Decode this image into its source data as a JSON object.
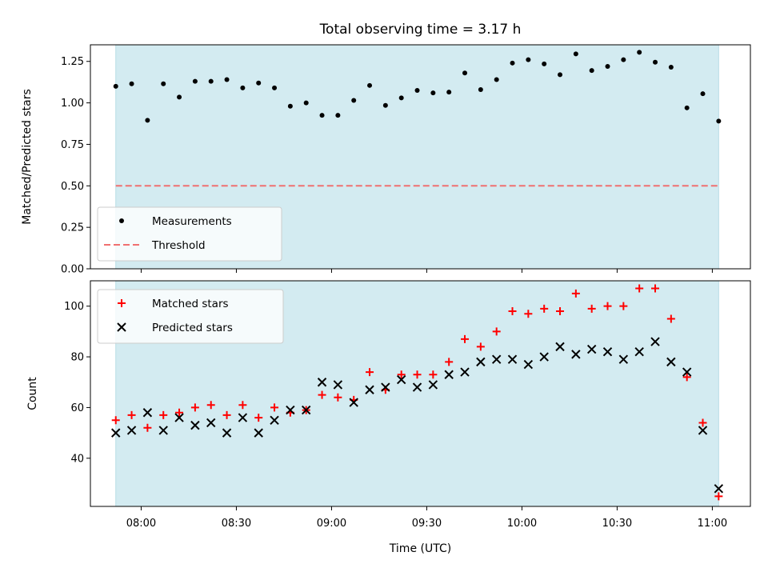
{
  "chart_data": [
    {
      "type": "scatter",
      "title": "Total observing time = 3.17 h",
      "xlabel": "",
      "ylabel": "Matched/Predicted stars",
      "ylim": [
        0,
        1.35
      ],
      "yticks": [
        "0.00",
        "0.25",
        "0.50",
        "0.75",
        "1.00",
        "1.25"
      ],
      "x_tick_labels_visible": false,
      "grid": false,
      "legend": "lower-left",
      "shaded_interval": [
        "07:52",
        "11:02"
      ],
      "shade_color": "#d3ebf1",
      "series": [
        {
          "name": "Measurements",
          "marker": "dot",
          "color": "#000000",
          "x": [
            "07:52",
            "07:57",
            "08:02",
            "08:07",
            "08:12",
            "08:17",
            "08:22",
            "08:27",
            "08:32",
            "08:37",
            "08:42",
            "08:47",
            "08:52",
            "08:57",
            "09:02",
            "09:07",
            "09:12",
            "09:17",
            "09:22",
            "09:27",
            "09:32",
            "09:37",
            "09:42",
            "09:47",
            "09:52",
            "09:57",
            "10:02",
            "10:07",
            "10:12",
            "10:17",
            "10:22",
            "10:27",
            "10:32",
            "10:37",
            "10:42",
            "10:47",
            "10:52",
            "10:57",
            "11:02"
          ],
          "y": [
            1.1,
            1.115,
            0.895,
            1.115,
            1.035,
            1.13,
            1.13,
            1.14,
            1.09,
            1.12,
            1.09,
            0.98,
            1.0,
            0.925,
            0.925,
            1.015,
            1.105,
            0.985,
            1.03,
            1.075,
            1.06,
            1.065,
            1.18,
            1.08,
            1.14,
            1.24,
            1.26,
            1.235,
            1.17,
            1.295,
            1.195,
            1.22,
            1.26,
            1.305,
            1.245,
            1.215,
            0.97,
            1.055,
            0.89
          ]
        },
        {
          "name": "Threshold",
          "marker": "dashed-line",
          "color": "#f07070",
          "y": 0.5
        }
      ]
    },
    {
      "type": "scatter",
      "title": "",
      "xlabel": "Time (UTC)",
      "ylabel": "Count",
      "ylim": [
        21,
        110
      ],
      "yticks": [
        "40",
        "60",
        "80",
        "100"
      ],
      "xlim": [
        "07:44",
        "11:12"
      ],
      "xticks": [
        "08:00",
        "08:30",
        "09:00",
        "09:30",
        "10:00",
        "10:30",
        "11:00"
      ],
      "grid": false,
      "legend": "top-left",
      "shaded_interval": [
        "07:52",
        "11:02"
      ],
      "shade_color": "#d3ebf1",
      "series": [
        {
          "name": "Matched stars",
          "marker": "plus",
          "color": "#ff0000",
          "x": [
            "07:52",
            "07:57",
            "08:02",
            "08:07",
            "08:12",
            "08:17",
            "08:22",
            "08:27",
            "08:32",
            "08:37",
            "08:42",
            "08:47",
            "08:52",
            "08:57",
            "09:02",
            "09:07",
            "09:12",
            "09:17",
            "09:22",
            "09:27",
            "09:32",
            "09:37",
            "09:42",
            "09:47",
            "09:52",
            "09:57",
            "10:02",
            "10:07",
            "10:12",
            "10:17",
            "10:22",
            "10:27",
            "10:32",
            "10:37",
            "10:42",
            "10:47",
            "10:52",
            "10:57",
            "11:02"
          ],
          "y": [
            55,
            57,
            52,
            57,
            58,
            60,
            61,
            57,
            61,
            56,
            60,
            58,
            59,
            65,
            64,
            63,
            74,
            67,
            73,
            73,
            73,
            78,
            87,
            84,
            90,
            98,
            97,
            99,
            98,
            105,
            99,
            100,
            100,
            107,
            107,
            95,
            72,
            54,
            25
          ]
        },
        {
          "name": "Predicted stars",
          "marker": "x",
          "color": "#000000",
          "x": [
            "07:52",
            "07:57",
            "08:02",
            "08:07",
            "08:12",
            "08:17",
            "08:22",
            "08:27",
            "08:32",
            "08:37",
            "08:42",
            "08:47",
            "08:52",
            "08:57",
            "09:02",
            "09:07",
            "09:12",
            "09:17",
            "09:22",
            "09:27",
            "09:32",
            "09:37",
            "09:42",
            "09:47",
            "09:52",
            "09:57",
            "10:02",
            "10:07",
            "10:12",
            "10:17",
            "10:22",
            "10:27",
            "10:32",
            "10:37",
            "10:42",
            "10:47",
            "10:52",
            "10:57",
            "11:02"
          ],
          "y": [
            50,
            51,
            58,
            51,
            56,
            53,
            54,
            50,
            56,
            50,
            55,
            59,
            59,
            70,
            69,
            62,
            67,
            68,
            71,
            68,
            69,
            73,
            74,
            78,
            79,
            79,
            77,
            80,
            84,
            81,
            83,
            82,
            79,
            82,
            86,
            78,
            74,
            51,
            28
          ]
        }
      ]
    }
  ]
}
